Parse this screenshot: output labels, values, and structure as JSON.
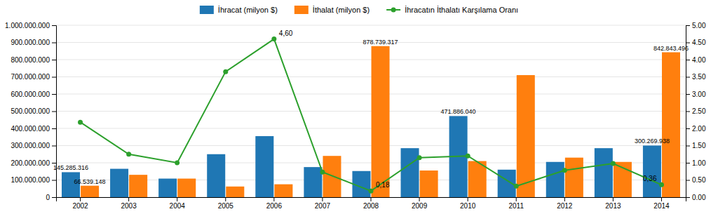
{
  "chart_data": {
    "type": "bar",
    "categories": [
      "2002",
      "2003",
      "2004",
      "2005",
      "2006",
      "2007",
      "2008",
      "2009",
      "2010",
      "2011",
      "2012",
      "2013",
      "2014"
    ],
    "series": [
      {
        "name": "İhracat (milyon $)",
        "type": "bar",
        "values": [
          145285316,
          165000000,
          108000000,
          250000000,
          355000000,
          175000000,
          152000000,
          285000000,
          471886040,
          160000000,
          205000000,
          285000000,
          300269938
        ],
        "value_labels": [
          "145.285.316",
          null,
          null,
          null,
          null,
          null,
          null,
          null,
          "471.886.040",
          null,
          null,
          null,
          "300.269.938"
        ]
      },
      {
        "name": "İthalat (milyon $)",
        "type": "bar",
        "values": [
          66539148,
          130000000,
          108000000,
          62000000,
          75000000,
          240000000,
          878739317,
          155000000,
          210000000,
          710000000,
          230000000,
          205000000,
          842843496
        ],
        "value_labels": [
          "66.539.148",
          null,
          null,
          null,
          null,
          null,
          "878.739.317",
          null,
          null,
          null,
          null,
          null,
          "842.843.496"
        ]
      },
      {
        "name": "İhracatın İthalatı Karşılama Oranı",
        "type": "line",
        "axis": "y2",
        "marker": "circle",
        "values": [
          2.18,
          1.25,
          1.0,
          3.65,
          4.6,
          0.73,
          0.18,
          1.15,
          1.2,
          0.32,
          0.78,
          0.98,
          0.36
        ],
        "value_labels": [
          null,
          null,
          null,
          null,
          "4,60",
          null,
          "0,18",
          null,
          null,
          null,
          null,
          null,
          "0,36"
        ]
      }
    ],
    "ylim": [
      0,
      1000000000
    ],
    "yticks": [
      0,
      {
        "value": 100000000,
        "label": "100.000.000"
      },
      {
        "value": 200000000,
        "label": "200.000.000"
      },
      {
        "value": 300000000,
        "label": "300.000.000"
      },
      {
        "value": 400000000,
        "label": "400.000.000"
      },
      {
        "value": 500000000,
        "label": "500.000.000"
      },
      {
        "value": 600000000,
        "label": "600.000.000"
      },
      {
        "value": 700000000,
        "label": "700.000.000"
      },
      {
        "value": 800000000,
        "label": "800.000.000"
      },
      {
        "value": 900000000,
        "label": "900.000.000"
      },
      {
        "value": 1000000000,
        "label": "1.000.000.000"
      }
    ],
    "y2lim": [
      0,
      5
    ],
    "y2ticks": [
      {
        "value": 0,
        "label": "0.00"
      },
      {
        "value": 0.5,
        "label": "0.50"
      },
      {
        "value": 1,
        "label": "1.00"
      },
      {
        "value": 1.5,
        "label": "1.50"
      },
      {
        "value": 2,
        "label": "2.00"
      },
      {
        "value": 2.5,
        "label": "2.50"
      },
      {
        "value": 3,
        "label": "3.00"
      },
      {
        "value": 3.5,
        "label": "3.50"
      },
      {
        "value": 4,
        "label": "4.00"
      },
      {
        "value": 4.5,
        "label": "4.50"
      },
      {
        "value": 5,
        "label": "5.00"
      }
    ],
    "grid": true,
    "legend": "top"
  }
}
